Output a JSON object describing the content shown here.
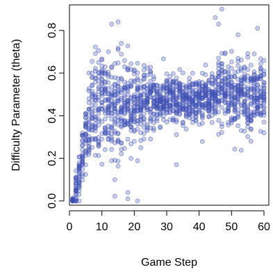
{
  "chart_data": {
    "type": "scatter",
    "xlabel": "Game Step",
    "ylabel": "Difficulty Parameter (theta)",
    "xlim": [
      0,
      61.5
    ],
    "ylim": [
      -0.02,
      0.92
    ],
    "xticks": [
      0,
      10,
      20,
      30,
      40,
      50,
      60
    ],
    "yticks": [
      0.0,
      0.2,
      0.4,
      0.6,
      0.8
    ],
    "ytick_labels": [
      "0.0",
      "0.2",
      "0.4",
      "0.6",
      "0.8"
    ],
    "grid": false,
    "color": "#3f51b5",
    "series_profile": {
      "steps_x": [
        1,
        2,
        3,
        4,
        5,
        6,
        7,
        8,
        9,
        10,
        11,
        12,
        13,
        14,
        15,
        16,
        17,
        18,
        19,
        20,
        21,
        22,
        23,
        24,
        25,
        26,
        27,
        28,
        29,
        30,
        31,
        32,
        33,
        34,
        35,
        36,
        37,
        38,
        39,
        40,
        41,
        42,
        43,
        44,
        45,
        46,
        47,
        48,
        49,
        50,
        51,
        52,
        53,
        54,
        55,
        56,
        57,
        58,
        59,
        60
      ],
      "median_y": [
        0.0,
        0.06,
        0.13,
        0.22,
        0.29,
        0.35,
        0.4,
        0.44,
        0.46,
        0.47,
        0.46,
        0.45,
        0.45,
        0.44,
        0.44,
        0.44,
        0.45,
        0.45,
        0.46,
        0.46,
        0.46,
        0.46,
        0.46,
        0.46,
        0.47,
        0.47,
        0.47,
        0.47,
        0.47,
        0.47,
        0.47,
        0.47,
        0.47,
        0.47,
        0.48,
        0.48,
        0.48,
        0.48,
        0.48,
        0.48,
        0.48,
        0.48,
        0.48,
        0.48,
        0.48,
        0.5,
        0.53,
        0.52,
        0.51,
        0.51,
        0.5,
        0.5,
        0.5,
        0.5,
        0.5,
        0.49,
        0.49,
        0.49,
        0.48,
        0.47
      ],
      "spread_y": [
        0.01,
        0.04,
        0.05,
        0.06,
        0.08,
        0.1,
        0.12,
        0.13,
        0.13,
        0.13,
        0.13,
        0.13,
        0.12,
        0.12,
        0.12,
        0.11,
        0.1,
        0.1,
        0.09,
        0.09,
        0.08,
        0.08,
        0.08,
        0.07,
        0.07,
        0.07,
        0.06,
        0.06,
        0.06,
        0.06,
        0.06,
        0.06,
        0.06,
        0.06,
        0.05,
        0.05,
        0.05,
        0.05,
        0.05,
        0.05,
        0.05,
        0.05,
        0.05,
        0.05,
        0.06,
        0.09,
        0.1,
        0.1,
        0.09,
        0.09,
        0.09,
        0.09,
        0.09,
        0.08,
        0.08,
        0.08,
        0.08,
        0.08,
        0.08,
        0.08
      ],
      "points_per_step": 26
    },
    "outliers": [
      {
        "x": 13,
        "y": 0.83
      },
      {
        "x": 15,
        "y": 0.84
      },
      {
        "x": 12,
        "y": 0.7
      },
      {
        "x": 18,
        "y": 0.04
      },
      {
        "x": 18,
        "y": 0.01
      },
      {
        "x": 21,
        "y": 0.0
      },
      {
        "x": 14,
        "y": 0.1
      },
      {
        "x": 33,
        "y": 0.17
      },
      {
        "x": 47,
        "y": 0.9
      },
      {
        "x": 45,
        "y": 0.86
      },
      {
        "x": 46,
        "y": 0.83
      },
      {
        "x": 52,
        "y": 0.78
      },
      {
        "x": 58,
        "y": 0.81
      },
      {
        "x": 57,
        "y": 0.69
      },
      {
        "x": 60,
        "y": 0.32
      },
      {
        "x": 2,
        "y": 0.0
      },
      {
        "x": 3,
        "y": 0.0
      }
    ]
  }
}
